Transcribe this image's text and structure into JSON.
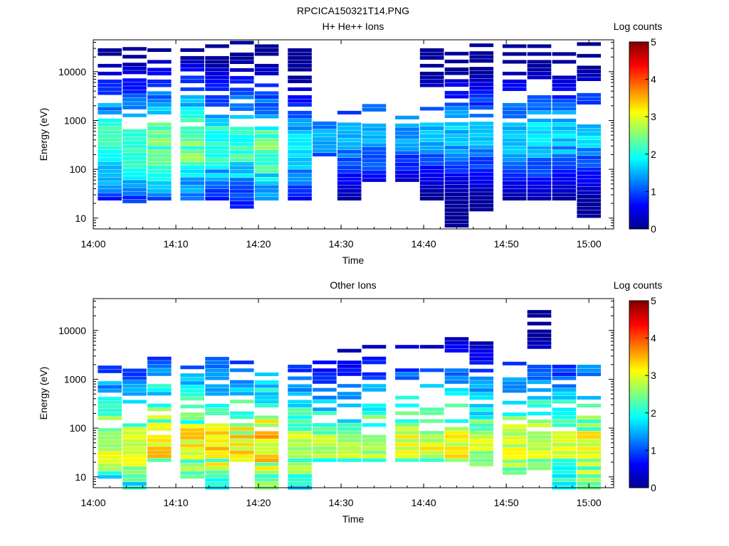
{
  "figure": {
    "title": "RPCICA150321T14.PNG"
  },
  "chart_data": [
    {
      "type": "heatmap",
      "title": "H+ He++ Ions",
      "xlabel": "Time",
      "ylabel": "Energy (eV)",
      "x_ticks": [
        "14:00",
        "14:10",
        "14:20",
        "14:30",
        "14:40",
        "14:50",
        "15:00"
      ],
      "x_range": [
        "14:00",
        "15:03"
      ],
      "y_ticks": [
        10,
        100,
        1000,
        10000
      ],
      "y_tick_labels": [
        "10",
        "100",
        "1000",
        "10000"
      ],
      "y_range": [
        6,
        45000
      ],
      "y_scale": "log",
      "colorbar": {
        "label": "Log counts",
        "range": [
          0,
          5
        ],
        "ticks": [
          "0",
          "1",
          "2",
          "3",
          "4",
          "5"
        ]
      },
      "time_bins": [
        "14:02",
        "14:05",
        "14:08",
        "14:12",
        "14:15",
        "14:18",
        "14:21",
        "14:25",
        "14:28",
        "14:31",
        "14:34",
        "14:38",
        "14:41",
        "14:44",
        "14:47",
        "14:51",
        "14:54",
        "14:57",
        "15:00"
      ],
      "profile": [
        {
          "emin": 25,
          "emax": 40000,
          "core_lo": 150,
          "core_hi": 700,
          "peak": 2.4
        },
        {
          "emin": 22,
          "emax": 30000,
          "core_lo": 150,
          "core_hi": 700,
          "peak": 2.4
        },
        {
          "emin": 25,
          "emax": 40000,
          "core_lo": 150,
          "core_hi": 600,
          "peak": 2.7
        },
        {
          "emin": 25,
          "emax": 40000,
          "core_lo": 150,
          "core_hi": 600,
          "peak": 2.7
        },
        {
          "emin": 25,
          "emax": 40000,
          "core_lo": 150,
          "core_hi": 700,
          "peak": 2.3
        },
        {
          "emin": 17,
          "emax": 40000,
          "core_lo": 150,
          "core_hi": 700,
          "peak": 2.4
        },
        {
          "emin": 25,
          "emax": 40000,
          "core_lo": 150,
          "core_hi": 400,
          "peak": 2.7
        },
        {
          "emin": 25,
          "emax": 40000,
          "core_lo": 150,
          "core_hi": 500,
          "peak": 2.0
        },
        {
          "emin": 200,
          "emax": 1000,
          "core_lo": 250,
          "core_hi": 700,
          "peak": 1.6
        },
        {
          "emin": 25,
          "emax": 1500,
          "core_lo": 250,
          "core_hi": 800,
          "peak": 1.8
        },
        {
          "emin": 60,
          "emax": 2000,
          "core_lo": 300,
          "core_hi": 900,
          "peak": 1.8
        },
        {
          "emin": 60,
          "emax": 2000,
          "core_lo": 300,
          "core_hi": 900,
          "peak": 1.6
        },
        {
          "emin": 25,
          "emax": 30000,
          "core_lo": 300,
          "core_hi": 900,
          "peak": 1.7
        },
        {
          "emin": 7,
          "emax": 40000,
          "core_lo": 300,
          "core_hi": 900,
          "peak": 1.8
        },
        {
          "emin": 15,
          "emax": 40000,
          "core_lo": 300,
          "core_hi": 900,
          "peak": 1.8
        },
        {
          "emin": 25,
          "emax": 40000,
          "core_lo": 300,
          "core_hi": 900,
          "peak": 1.9
        },
        {
          "emin": 25,
          "emax": 40000,
          "core_lo": 300,
          "core_hi": 900,
          "peak": 2.0
        },
        {
          "emin": 25,
          "emax": 40000,
          "core_lo": 300,
          "core_hi": 900,
          "peak": 1.9
        },
        {
          "emin": 11,
          "emax": 40000,
          "core_lo": 300,
          "core_hi": 900,
          "peak": 1.9
        }
      ]
    },
    {
      "type": "heatmap",
      "title": "Other Ions",
      "xlabel": "Time",
      "ylabel": "Energy (eV)",
      "x_ticks": [
        "14:00",
        "14:10",
        "14:20",
        "14:30",
        "14:40",
        "14:50",
        "15:00"
      ],
      "x_range": [
        "14:00",
        "15:03"
      ],
      "y_ticks": [
        10,
        100,
        1000,
        10000
      ],
      "y_tick_labels": [
        "10",
        "100",
        "1000",
        "10000"
      ],
      "y_range": [
        6,
        45000
      ],
      "y_scale": "log",
      "colorbar": {
        "label": "Log counts",
        "range": [
          0,
          5
        ],
        "ticks": [
          "0",
          "1",
          "2",
          "3",
          "4",
          "5"
        ]
      },
      "time_bins": [
        "14:02",
        "14:05",
        "14:08",
        "14:12",
        "14:15",
        "14:18",
        "14:21",
        "14:25",
        "14:28",
        "14:31",
        "14:34",
        "14:38",
        "14:41",
        "14:44",
        "14:47",
        "14:51",
        "14:54",
        "14:57",
        "15:00"
      ],
      "profile": [
        {
          "emin": 10,
          "emax": 2000,
          "core_lo": 25,
          "core_hi": 80,
          "peak": 3.3
        },
        {
          "emin": 6,
          "emax": 1800,
          "core_lo": 25,
          "core_hi": 80,
          "peak": 3.3
        },
        {
          "emin": 22,
          "emax": 2700,
          "core_lo": 25,
          "core_hi": 80,
          "peak": 3.7
        },
        {
          "emin": 10,
          "emax": 2500,
          "core_lo": 25,
          "core_hi": 80,
          "peak": 3.5
        },
        {
          "emin": 6,
          "emax": 2800,
          "core_lo": 25,
          "core_hi": 80,
          "peak": 3.6
        },
        {
          "emin": 22,
          "emax": 2300,
          "core_lo": 25,
          "core_hi": 80,
          "peak": 3.6
        },
        {
          "emin": 6,
          "emax": 1600,
          "core_lo": 25,
          "core_hi": 80,
          "peak": 3.7
        },
        {
          "emin": 6,
          "emax": 2300,
          "core_lo": 25,
          "core_hi": 80,
          "peak": 3.2
        },
        {
          "emin": 22,
          "emax": 3200,
          "core_lo": 25,
          "core_hi": 80,
          "peak": 3.0
        },
        {
          "emin": 22,
          "emax": 4500,
          "core_lo": 25,
          "core_hi": 80,
          "peak": 3.0
        },
        {
          "emin": 22,
          "emax": 6000,
          "core_lo": 25,
          "core_hi": 80,
          "peak": 3.2
        },
        {
          "emin": 22,
          "emax": 6000,
          "core_lo": 25,
          "core_hi": 80,
          "peak": 3.3
        },
        {
          "emin": 22,
          "emax": 5500,
          "core_lo": 25,
          "core_hi": 80,
          "peak": 3.3
        },
        {
          "emin": 22,
          "emax": 7000,
          "core_lo": 25,
          "core_hi": 80,
          "peak": 3.4
        },
        {
          "emin": 18,
          "emax": 6500,
          "core_lo": 25,
          "core_hi": 80,
          "peak": 3.2
        },
        {
          "emin": 12,
          "emax": 2500,
          "core_lo": 25,
          "core_hi": 80,
          "peak": 3.3
        },
        {
          "emin": 15,
          "emax": 40000,
          "core_lo": 25,
          "core_hi": 80,
          "peak": 3.3
        },
        {
          "emin": 6,
          "emax": 2500,
          "core_lo": 25,
          "core_hi": 80,
          "peak": 3.2
        },
        {
          "emin": 6,
          "emax": 3500,
          "core_lo": 25,
          "core_hi": 80,
          "peak": 3.6
        }
      ]
    }
  ]
}
